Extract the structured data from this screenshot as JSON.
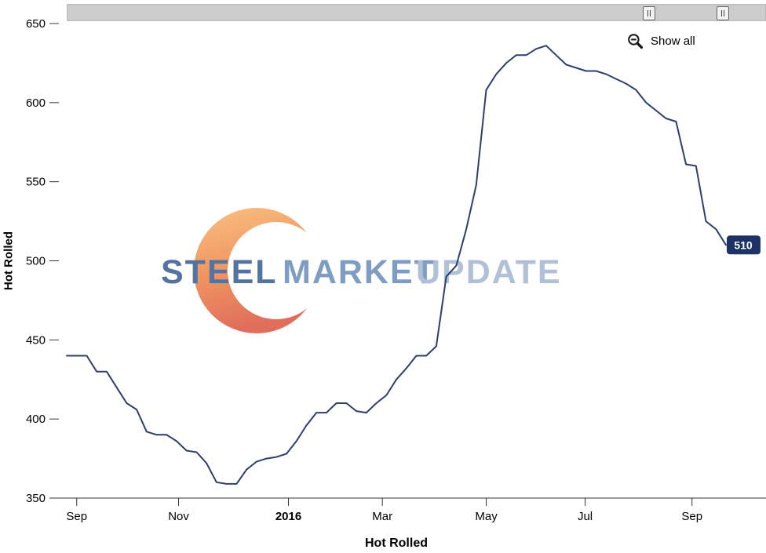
{
  "navigator": {
    "show_all_label": "Show all"
  },
  "watermark": {
    "words": [
      "STEEL",
      "MARKET",
      "UPDATE"
    ],
    "colors": {
      "steel": "#54749f",
      "market": "#7f9cc2",
      "update": "#b0c0d6",
      "crescent_top": "#f8b973",
      "crescent_bottom": "#dd5a45"
    }
  },
  "chart_data": {
    "type": "line",
    "series_name": "Hot Rolled",
    "yaxis": {
      "title": "Hot Rolled",
      "min": 350,
      "max": 650,
      "ticks": [
        650,
        600,
        550,
        500,
        450,
        400,
        350
      ]
    },
    "xaxis": {
      "ticks": [
        {
          "label": "Sep",
          "index": 1.0,
          "bold": false
        },
        {
          "label": "Nov",
          "index": 11.2,
          "bold": false
        },
        {
          "label": "2016",
          "index": 22.2,
          "bold": true
        },
        {
          "label": "Mar",
          "index": 31.6,
          "bold": false
        },
        {
          "label": "May",
          "index": 42.0,
          "bold": false
        },
        {
          "label": "Jul",
          "index": 51.9,
          "bold": false
        },
        {
          "label": "Sep",
          "index": 62.6,
          "bold": false
        }
      ]
    },
    "values": [
      440,
      440,
      440,
      430,
      430,
      420,
      410,
      406,
      392,
      390,
      390,
      386,
      380,
      379,
      372,
      360,
      359,
      359,
      368,
      373,
      375,
      376,
      378,
      386,
      396,
      404,
      404,
      410,
      410,
      405,
      404,
      410,
      415,
      425,
      432,
      440,
      440,
      446,
      490,
      497,
      520,
      548,
      608,
      618,
      625,
      630,
      630,
      634,
      636,
      630,
      624,
      622,
      620,
      620,
      618,
      615,
      612,
      608,
      600,
      595,
      590,
      588,
      561,
      560,
      525,
      520,
      510
    ],
    "last_value_label": "510",
    "line_color": "#2c3f6e",
    "last_label_bg": "#1e3365"
  }
}
